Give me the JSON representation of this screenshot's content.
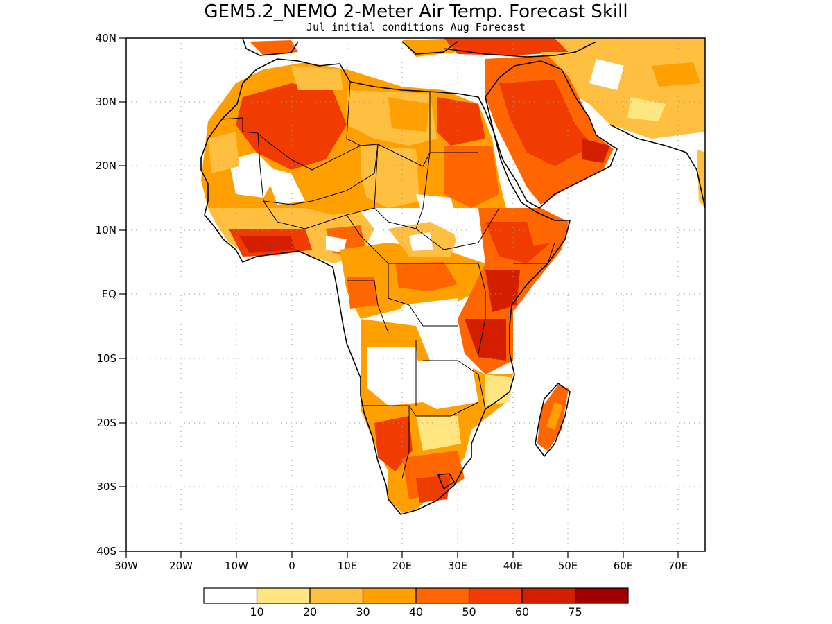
{
  "title": "GEM5.2_NEMO 2-Meter Air Temp. Forecast Skill",
  "subtitle": "Jul initial conditions  Aug Forecast",
  "lat_labels": [
    "40N",
    "30N",
    "20N",
    "10N",
    "EQ",
    "10S",
    "20S",
    "30S",
    "40S"
  ],
  "lon_labels": [
    "30W",
    "20W",
    "10W",
    "0",
    "10E",
    "20E",
    "30E",
    "40E",
    "50E",
    "60E",
    "70E"
  ],
  "colorbar": {
    "colors": [
      "#ffffff",
      "#ffe680",
      "#ffbf40",
      "#ffa000",
      "#ff6600",
      "#f03c00",
      "#d41e00",
      "#a00000"
    ],
    "labels": [
      "10",
      "20",
      "30",
      "40",
      "50",
      "60",
      "75"
    ]
  }
}
